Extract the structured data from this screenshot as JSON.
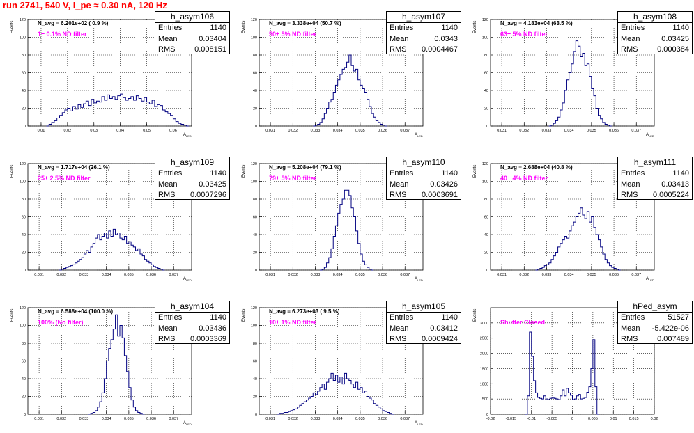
{
  "page_title": "run 2741,   540 V, I_pe ≈ 0.30 nA, 120 Hz",
  "colors": {
    "title": "#ff0000",
    "annotation": "#ff00ff",
    "histogram_line": "#000080",
    "grid": "#000000"
  },
  "chart_data": [
    {
      "type": "histogram",
      "title": "h_asym106",
      "ylabel": "Events",
      "xlabel": "A",
      "xlabel_sub": "LED",
      "stats": {
        "entries_label": "Entries",
        "entries": "1140",
        "mean_label": "Mean",
        "mean": "0.03404",
        "rms_label": "RMS",
        "rms": "0.008151"
      },
      "n_avg": "N_avg = 6.201e+02 ( 0.9 %)",
      "annotation": "1± 0.1% ND filter",
      "xlim": [
        0.005,
        0.067
      ],
      "ylim": [
        0,
        120
      ],
      "xticks": [
        0.01,
        0.02,
        0.03,
        0.04,
        0.05,
        0.06
      ],
      "xtick_labels": [
        "0.01",
        "0.02",
        "0.03",
        "0.04",
        "0.05",
        "0.06"
      ],
      "yticks": [
        0,
        20,
        40,
        60,
        80,
        100,
        120
      ],
      "ytick_labels": [
        "0",
        "20",
        "40",
        "60",
        "80",
        "100",
        "120"
      ],
      "bin_width": 0.001,
      "x_start": 0.012,
      "counts": [
        0,
        2,
        4,
        6,
        9,
        12,
        15,
        18,
        20,
        17,
        22,
        19,
        24,
        21,
        25,
        28,
        23,
        30,
        26,
        28,
        27,
        33,
        29,
        35,
        31,
        33,
        30,
        34,
        36,
        32,
        29,
        31,
        33,
        29,
        34,
        31,
        28,
        32,
        27,
        25,
        29,
        22,
        24,
        23,
        18,
        16,
        14,
        12,
        8,
        5,
        3,
        2,
        1,
        0
      ]
    },
    {
      "type": "histogram",
      "title": "h_asym107",
      "ylabel": "Events",
      "xlabel": "A",
      "xlabel_sub": "LED",
      "stats": {
        "entries_label": "Entries",
        "entries": "1140",
        "mean_label": "Mean",
        "mean": "0.0343",
        "rms_label": "RMS",
        "rms": "0.0004467"
      },
      "n_avg": "N_avg = 3.338e+04 (50.7 %)",
      "annotation": "50± 5% ND filter",
      "xlim": [
        0.0305,
        0.0378
      ],
      "ylim": [
        0,
        120
      ],
      "xticks": [
        0.031,
        0.032,
        0.033,
        0.034,
        0.035,
        0.036,
        0.037
      ],
      "xtick_labels": [
        "0.031",
        "0.032",
        "0.033",
        "0.034",
        "0.035",
        "0.036",
        "0.037"
      ],
      "yticks": [
        0,
        20,
        40,
        60,
        80,
        100,
        120
      ],
      "ytick_labels": [
        "0",
        "20",
        "40",
        "60",
        "80",
        "100",
        "120"
      ],
      "bin_width": 0.0001,
      "x_start": 0.0329,
      "counts": [
        0,
        1,
        2,
        4,
        8,
        14,
        20,
        27,
        30,
        38,
        46,
        52,
        58,
        64,
        66,
        72,
        80,
        68,
        62,
        64,
        52,
        46,
        42,
        38,
        30,
        22,
        14,
        10,
        6,
        4,
        2,
        1,
        0
      ]
    },
    {
      "type": "histogram",
      "title": "h_asym108",
      "ylabel": "Events",
      "xlabel": "A",
      "xlabel_sub": "LED",
      "stats": {
        "entries_label": "Entries",
        "entries": "1140",
        "mean_label": "Mean",
        "mean": "0.03425",
        "rms_label": "RMS",
        "rms": "0.000384"
      },
      "n_avg": "N_avg = 4.183e+04 (63.5 %)",
      "annotation": "63± 5% ND filter",
      "xlim": [
        0.0305,
        0.0378
      ],
      "ylim": [
        0,
        120
      ],
      "xticks": [
        0.031,
        0.032,
        0.033,
        0.034,
        0.035,
        0.036,
        0.037
      ],
      "xtick_labels": [
        "0.031",
        "0.032",
        "0.033",
        "0.034",
        "0.035",
        "0.036",
        "0.037"
      ],
      "yticks": [
        0,
        20,
        40,
        60,
        80,
        100,
        120
      ],
      "ytick_labels": [
        "0",
        "20",
        "40",
        "60",
        "80",
        "100",
        "120"
      ],
      "bin_width": 0.0001,
      "x_start": 0.0331,
      "counts": [
        0,
        1,
        3,
        6,
        10,
        18,
        26,
        40,
        52,
        60,
        70,
        84,
        96,
        90,
        78,
        82,
        68,
        70,
        56,
        42,
        34,
        20,
        12,
        8,
        4,
        2,
        1,
        0
      ]
    },
    {
      "type": "histogram",
      "title": "h_asym109",
      "ylabel": "Events",
      "xlabel": "A",
      "xlabel_sub": "LED",
      "stats": {
        "entries_label": "Entries",
        "entries": "1140",
        "mean_label": "Mean",
        "mean": "0.03425",
        "rms_label": "RMS",
        "rms": "0.0007296"
      },
      "n_avg": "N_avg = 1.717e+04 (26.1 %)",
      "annotation": "25± 2.5% ND filter",
      "xlim": [
        0.0305,
        0.0378
      ],
      "ylim": [
        0,
        120
      ],
      "xticks": [
        0.031,
        0.032,
        0.033,
        0.034,
        0.035,
        0.036,
        0.037
      ],
      "xtick_labels": [
        "0.031",
        "0.032",
        "0.033",
        "0.034",
        "0.035",
        "0.036",
        "0.037"
      ],
      "yticks": [
        0,
        20,
        40,
        60,
        80,
        100,
        120
      ],
      "ytick_labels": [
        "0",
        "20",
        "40",
        "60",
        "80",
        "100",
        "120"
      ],
      "bin_width": 0.0001,
      "x_start": 0.0319,
      "counts": [
        0,
        1,
        2,
        3,
        4,
        5,
        6,
        8,
        10,
        12,
        14,
        18,
        22,
        20,
        26,
        30,
        36,
        40,
        34,
        38,
        42,
        36,
        44,
        38,
        46,
        40,
        42,
        36,
        34,
        38,
        30,
        32,
        28,
        26,
        22,
        24,
        18,
        16,
        12,
        10,
        8,
        6,
        4,
        3,
        2,
        1,
        0
      ]
    },
    {
      "type": "histogram",
      "title": "h_asym110",
      "ylabel": "Events",
      "xlabel": "A",
      "xlabel_sub": "LED",
      "stats": {
        "entries_label": "Entries",
        "entries": "1140",
        "mean_label": "Mean",
        "mean": "0.03426",
        "rms_label": "RMS",
        "rms": "0.0003691"
      },
      "n_avg": "N_avg = 5.208e+04 (79.1 %)",
      "annotation": "79± 5% ND filter",
      "xlim": [
        0.0305,
        0.0378
      ],
      "ylim": [
        0,
        120
      ],
      "xticks": [
        0.031,
        0.032,
        0.033,
        0.034,
        0.035,
        0.036,
        0.037
      ],
      "xtick_labels": [
        "0.031",
        "0.032",
        "0.033",
        "0.034",
        "0.035",
        "0.036",
        "0.037"
      ],
      "yticks": [
        0,
        20,
        40,
        60,
        80,
        100,
        120
      ],
      "ytick_labels": [
        "0",
        "20",
        "40",
        "60",
        "80",
        "100",
        "120"
      ],
      "bin_width": 0.0001,
      "x_start": 0.0332,
      "counts": [
        0,
        1,
        3,
        8,
        14,
        24,
        38,
        50,
        64,
        74,
        80,
        90,
        90,
        84,
        70,
        60,
        44,
        30,
        18,
        10,
        6,
        3,
        1,
        0
      ]
    },
    {
      "type": "histogram",
      "title": "h_asym111",
      "ylabel": "Events",
      "xlabel": "A",
      "xlabel_sub": "LED",
      "stats": {
        "entries_label": "Entries",
        "entries": "1140",
        "mean_label": "Mean",
        "mean": "0.03413",
        "rms_label": "RMS",
        "rms": "0.0005224"
      },
      "n_avg": "N_avg = 2.688e+04 (40.8 %)",
      "annotation": "40± 4% ND filter",
      "xlim": [
        0.0305,
        0.0378
      ],
      "ylim": [
        0,
        120
      ],
      "xticks": [
        0.031,
        0.032,
        0.033,
        0.034,
        0.035,
        0.036,
        0.037
      ],
      "xtick_labels": [
        "0.031",
        "0.032",
        "0.033",
        "0.034",
        "0.035",
        "0.036",
        "0.037"
      ],
      "yticks": [
        0,
        20,
        40,
        60,
        80,
        100,
        120
      ],
      "ytick_labels": [
        "0",
        "20",
        "40",
        "60",
        "80",
        "100",
        "120"
      ],
      "bin_width": 0.0001,
      "x_start": 0.0325,
      "counts": [
        0,
        1,
        2,
        3,
        5,
        6,
        8,
        12,
        16,
        20,
        26,
        30,
        34,
        38,
        36,
        44,
        50,
        54,
        60,
        64,
        70,
        62,
        58,
        66,
        54,
        60,
        48,
        40,
        34,
        26,
        18,
        12,
        8,
        5,
        3,
        2,
        1,
        0
      ]
    },
    {
      "type": "histogram",
      "title": "h_asym104",
      "ylabel": "Events",
      "xlabel": "A",
      "xlabel_sub": "LED",
      "stats": {
        "entries_label": "Entries",
        "entries": "1140",
        "mean_label": "Mean",
        "mean": "0.03436",
        "rms_label": "RMS",
        "rms": "0.0003369"
      },
      "n_avg": "N_avg = 6.588e+04 (100.0 %)",
      "annotation": "100% (No filter)",
      "xlim": [
        0.0305,
        0.0378
      ],
      "ylim": [
        0,
        120
      ],
      "xticks": [
        0.031,
        0.032,
        0.033,
        0.034,
        0.035,
        0.036,
        0.037
      ],
      "xtick_labels": [
        "0.031",
        "0.032",
        "0.033",
        "0.034",
        "0.035",
        "0.036",
        "0.037"
      ],
      "yticks": [
        0,
        20,
        40,
        60,
        80,
        100,
        120
      ],
      "ytick_labels": [
        "0",
        "20",
        "40",
        "60",
        "80",
        "100",
        "120"
      ],
      "bin_width": 0.0001,
      "x_start": 0.0332,
      "counts": [
        0,
        1,
        2,
        4,
        8,
        14,
        24,
        40,
        60,
        74,
        84,
        96,
        112,
        88,
        100,
        86,
        66,
        48,
        30,
        16,
        8,
        4,
        2,
        1,
        0
      ]
    },
    {
      "type": "histogram",
      "title": "h_asym105",
      "ylabel": "Events",
      "xlabel": "A",
      "xlabel_sub": "LED",
      "stats": {
        "entries_label": "Entries",
        "entries": "1140",
        "mean_label": "Mean",
        "mean": "0.03412",
        "rms_label": "RMS",
        "rms": "0.0009424"
      },
      "n_avg": "N_avg = 6.273e+03 ( 9.5 %)",
      "annotation": "10± 1% ND filter",
      "xlim": [
        0.0305,
        0.0378
      ],
      "ylim": [
        0,
        120
      ],
      "xticks": [
        0.031,
        0.032,
        0.033,
        0.034,
        0.035,
        0.036,
        0.037
      ],
      "xtick_labels": [
        "0.031",
        "0.032",
        "0.033",
        "0.034",
        "0.035",
        "0.036",
        "0.037"
      ],
      "yticks": [
        0,
        20,
        40,
        60,
        80,
        100,
        120
      ],
      "ytick_labels": [
        "0",
        "20",
        "40",
        "60",
        "80",
        "100",
        "120"
      ],
      "bin_width": 0.0001,
      "x_start": 0.0313,
      "counts": [
        0,
        1,
        1,
        2,
        2,
        3,
        4,
        5,
        6,
        8,
        10,
        12,
        14,
        16,
        18,
        20,
        24,
        22,
        26,
        30,
        34,
        28,
        36,
        40,
        46,
        38,
        44,
        36,
        42,
        34,
        46,
        40,
        38,
        34,
        30,
        36,
        28,
        30,
        24,
        26,
        20,
        18,
        16,
        12,
        10,
        8,
        6,
        4,
        3,
        2,
        1,
        0
      ]
    },
    {
      "type": "histogram",
      "title": "hPed_asym",
      "ylabel": "Events",
      "xlabel": "",
      "xlabel_sub": "",
      "stats": {
        "entries_label": "Entries",
        "entries": "51527",
        "mean_label": "Mean",
        "mean": "-5.422e-06",
        "rms_label": "RMS",
        "rms": "0.007489"
      },
      "n_avg": "",
      "annotation": "Shutter Closed",
      "xlim": [
        -0.02,
        0.02
      ],
      "ylim": [
        0,
        3500
      ],
      "xticks": [
        -0.02,
        -0.015,
        -0.01,
        -0.005,
        0,
        0.005,
        0.01,
        0.015,
        0.02
      ],
      "xtick_labels": [
        "-0.02",
        "-0.015",
        "-0.01",
        "-0.005",
        "0",
        "0.005",
        "0.01",
        "0.015",
        "0.02"
      ],
      "yticks": [
        0,
        500,
        1000,
        1500,
        2000,
        2500,
        3000
      ],
      "ytick_labels": [
        "0",
        "500",
        "1000",
        "1500",
        "2000",
        "2500",
        "3000"
      ],
      "bin_width": 0.0005,
      "x_start": -0.0115,
      "counts": [
        0,
        600,
        2700,
        1900,
        1100,
        700,
        550,
        520,
        500,
        600,
        500,
        480,
        520,
        550,
        520,
        500,
        480,
        600,
        800,
        600,
        850,
        700,
        620,
        480,
        500,
        600,
        650,
        500,
        520,
        550,
        720,
        900,
        1500,
        2450,
        900,
        0
      ]
    }
  ]
}
